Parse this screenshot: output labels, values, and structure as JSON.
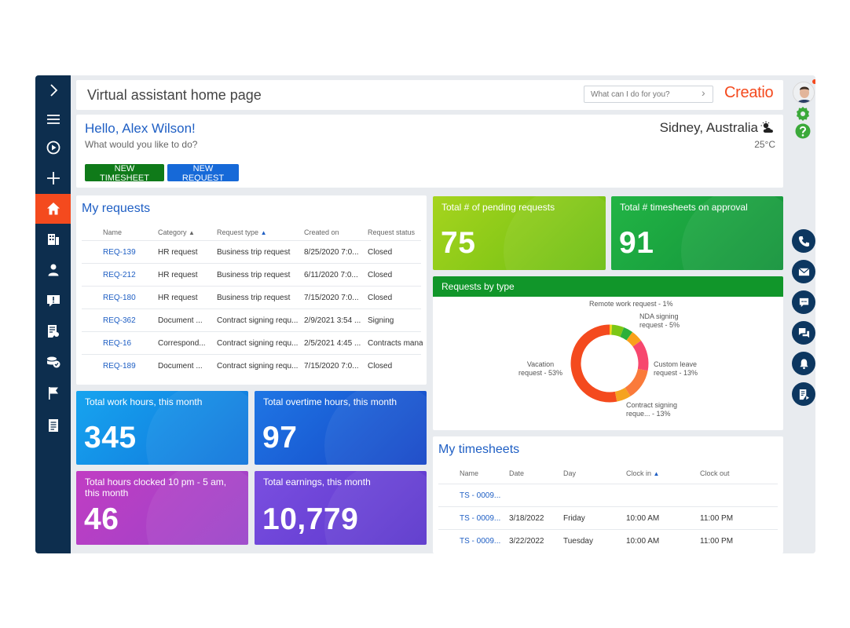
{
  "header": {
    "title": "Virtual assistant home page",
    "search_placeholder": "What can I do for you?",
    "logo": "Creatio"
  },
  "greeting": {
    "hello": "Hello, Alex Wilson!",
    "prompt": "What would you like to do?",
    "location": "Sidney, Australia",
    "temperature": "25°C",
    "weather_icon": "partly-cloudy-icon",
    "buttons": {
      "new_timesheet": "NEW TIMESHEET",
      "new_request": "NEW REQUEST"
    }
  },
  "sidebar": {
    "items": [
      "expand-icon",
      "menu-icon",
      "play-icon",
      "add-icon",
      "home-icon",
      "accounts-icon",
      "contacts-icon",
      "requests-icon",
      "documents-icon",
      "finance-icon",
      "flag-icon",
      "notes-icon"
    ],
    "active": "home-icon",
    "active_color": "#f44a1e"
  },
  "my_requests": {
    "title": "My requests",
    "columns": [
      "Name",
      "Category",
      "Request type",
      "Created on",
      "Request status"
    ],
    "rows": [
      [
        "REQ-139",
        "HR request",
        "Business trip request",
        "8/25/2020 7:0...",
        "Closed"
      ],
      [
        "REQ-212",
        "HR request",
        "Business trip request",
        "6/11/2020 7:0...",
        "Closed"
      ],
      [
        "REQ-180",
        "HR request",
        "Business trip request",
        "7/15/2020 7:0...",
        "Closed"
      ],
      [
        "REQ-362",
        "Document ...",
        "Contract signing requ...",
        "2/9/2021 3:54 ...",
        "Signing"
      ],
      [
        "REQ-16",
        "Correspond...",
        "Contract signing requ...",
        "2/5/2021 4:45 ...",
        "Contracts manag"
      ],
      [
        "REQ-189",
        "Document ...",
        "Contract signing requ...",
        "7/15/2020 7:0...",
        "Closed"
      ]
    ]
  },
  "tiles": {
    "pending": {
      "label": "Total # of pending requests",
      "value": "75",
      "color": "#7cc715"
    },
    "timesheets_approval": {
      "label": "Total # timesheets on approval",
      "value": "91",
      "color": "#1aa83a"
    },
    "work_hours": {
      "label": "Total work hours, this month",
      "value": "345",
      "color": "#1596e8"
    },
    "overtime": {
      "label": "Total overtime hours, this month",
      "value": "97",
      "color": "#1f66dc"
    },
    "night_hours": {
      "label": "Total hours clocked 10 pm - 5 am, this month",
      "value": "46",
      "color": "#b53ec4"
    },
    "earnings": {
      "label": "Total earnings, this month",
      "value": "10,779",
      "color": "#6a45d6"
    }
  },
  "chart_data": {
    "type": "pie",
    "title": "Requests by type",
    "labels": [
      "Remote work request - 1%",
      "NDA signing request - 5%",
      "Custom leave request - 13%",
      "Contract signing reque... - 13%",
      "Vacation request - 53%"
    ],
    "values": [
      1,
      5,
      13,
      13,
      53
    ],
    "extra_values": [
      4,
      5,
      6
    ],
    "colors": [
      "#f2d21c",
      "#7cc715",
      "#2bb03a",
      "#f9a11b",
      "#f7476e",
      "#fa7a3a",
      "#f5a31f",
      "#f44a1e"
    ]
  },
  "my_timesheets": {
    "title": "My timesheets",
    "columns": [
      "Name",
      "Date",
      "Day",
      "Clock in",
      "Clock out"
    ],
    "rows": [
      [
        "TS - 0009...",
        "",
        "",
        "",
        ""
      ],
      [
        "TS - 0009...",
        "3/18/2022",
        "Friday",
        "10:00 AM",
        "11:00 PM"
      ],
      [
        "TS - 0009...",
        "3/22/2022",
        "Tuesday",
        "10:00 AM",
        "11:00 PM"
      ]
    ]
  },
  "rail": {
    "icons": [
      "avatar",
      "settings-icon",
      "help-icon",
      "phone-icon",
      "email-icon",
      "chat-icon",
      "feed-icon",
      "notification-icon",
      "process-icon"
    ]
  }
}
